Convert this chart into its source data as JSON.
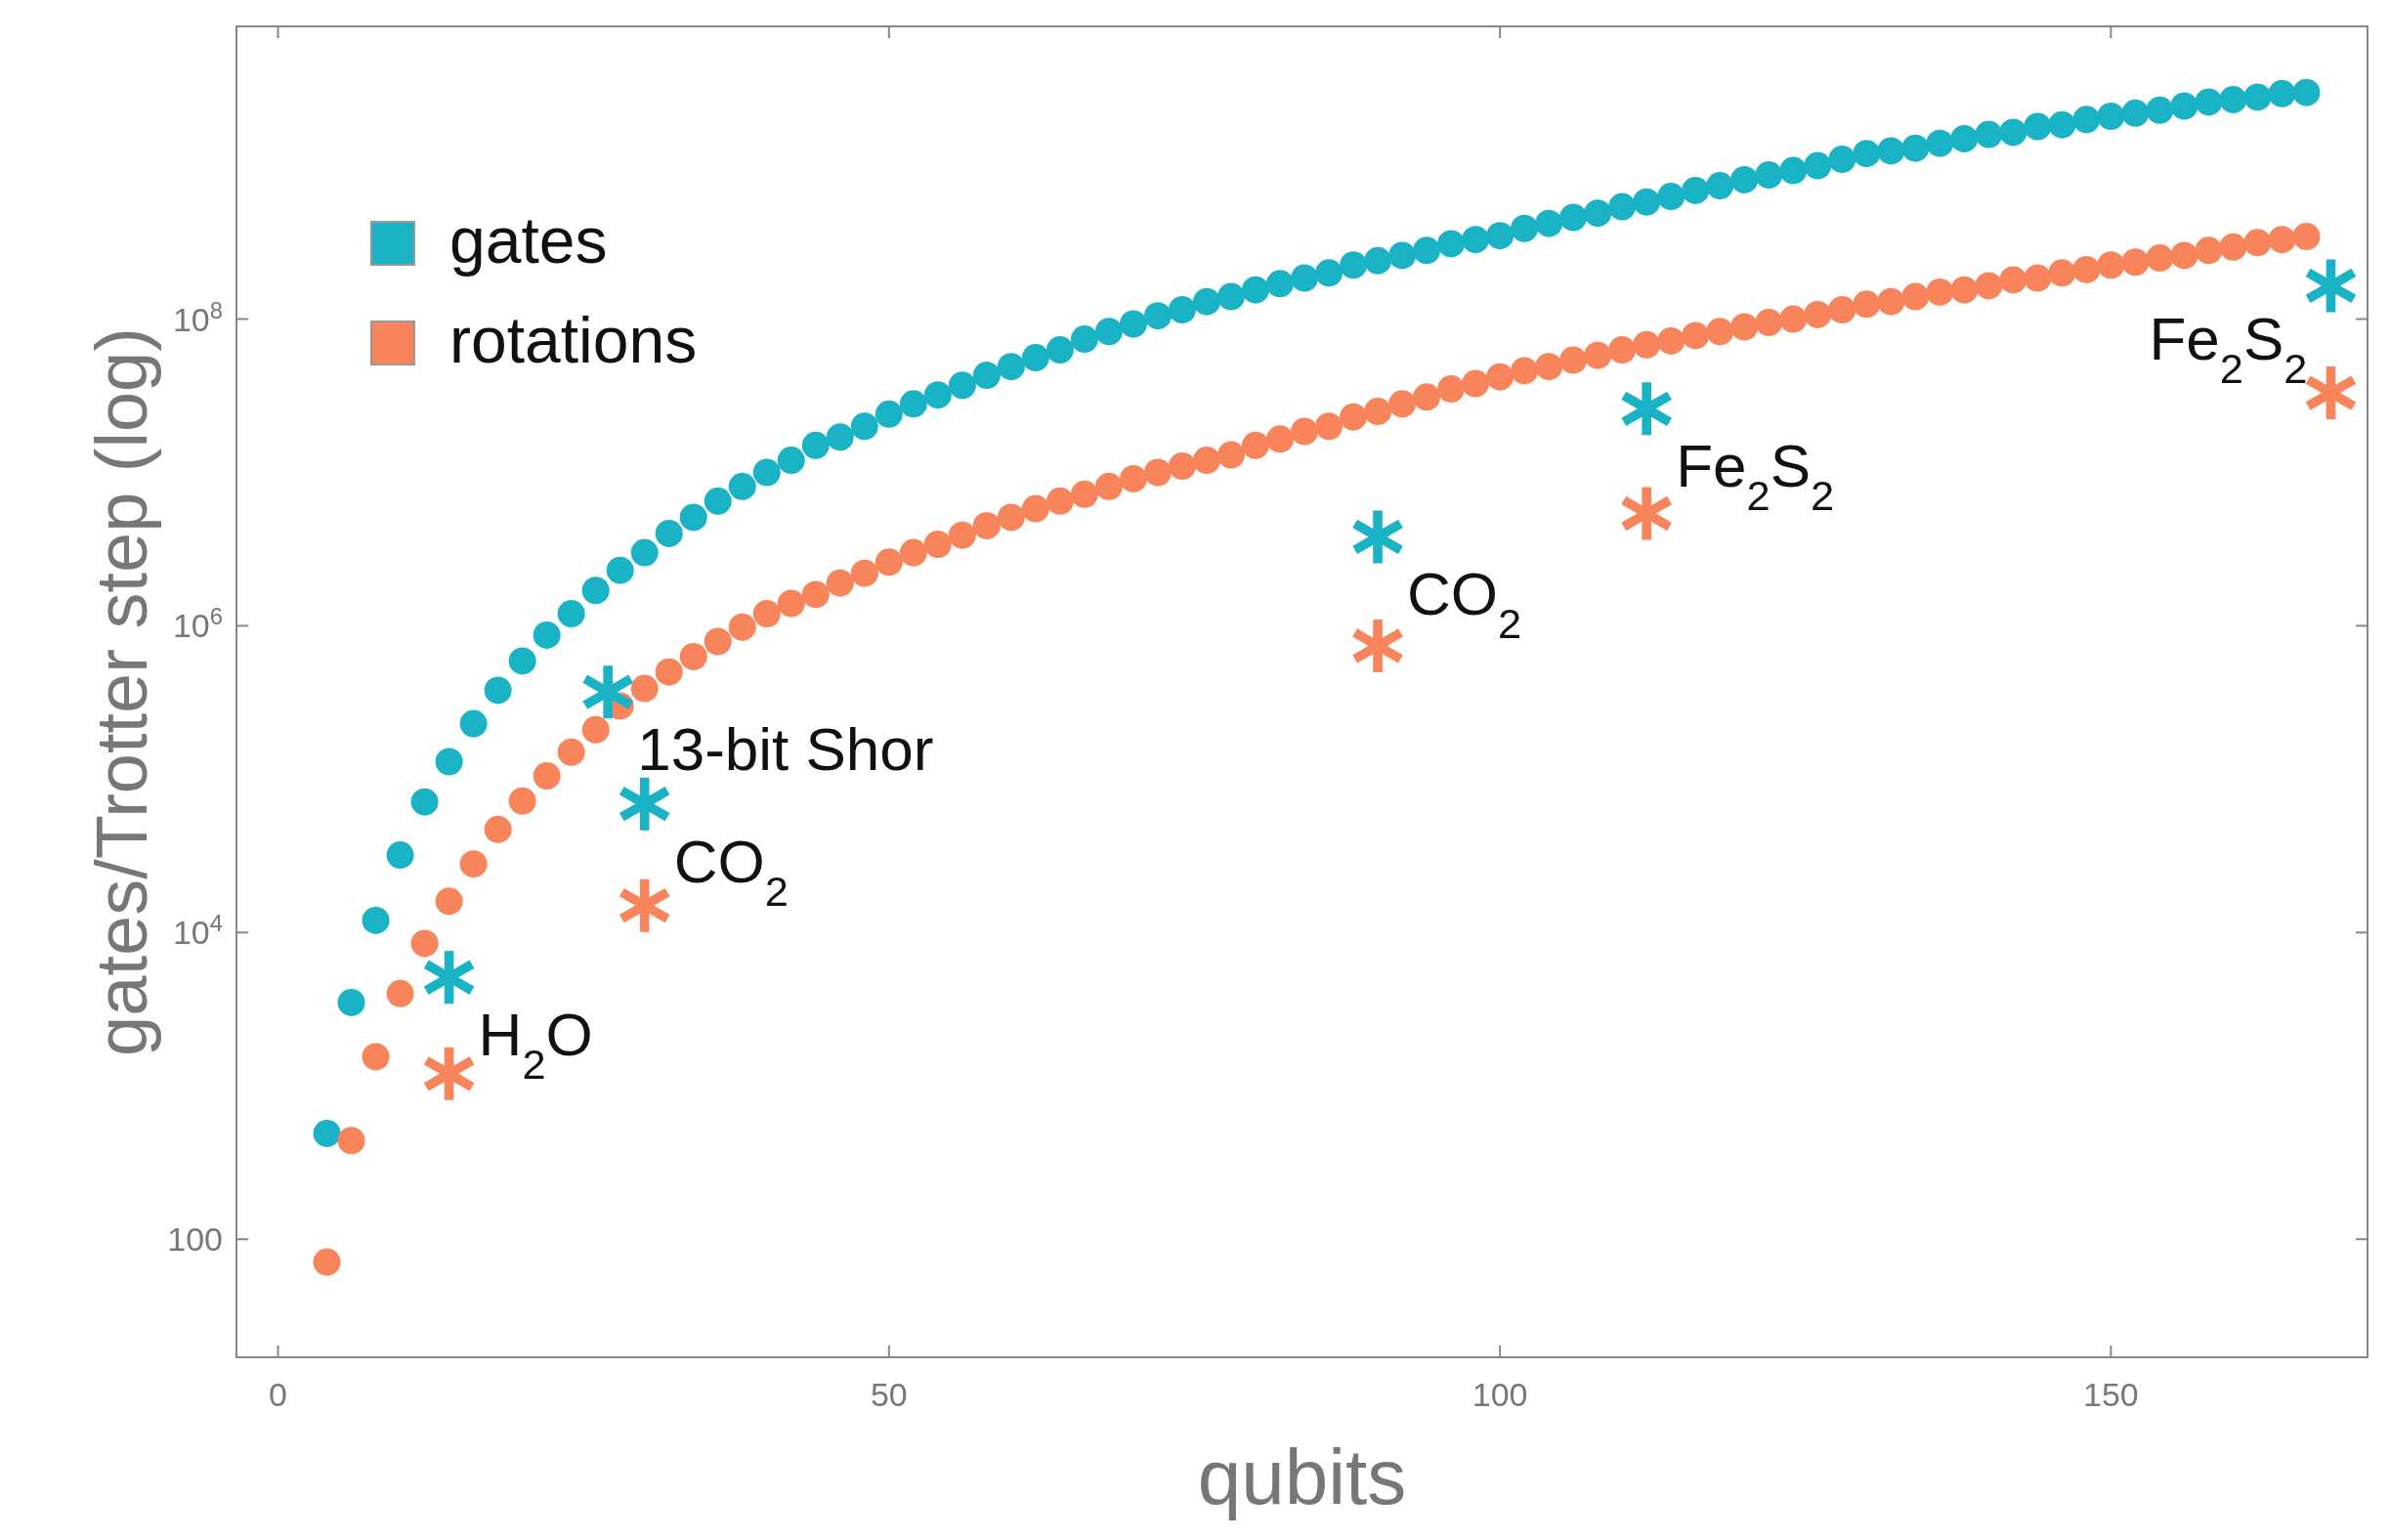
{
  "chart_data": {
    "type": "scatter",
    "xlabel": "qubits",
    "ylabel": "gates/Trotter step (log)",
    "log": "y",
    "grid": false,
    "legend": "top left",
    "marker": "circle",
    "xlim": [
      -3.4,
      171
    ],
    "xticks": [
      0,
      50,
      100,
      150
    ],
    "ylim": [
      17,
      8100000000.0
    ],
    "yticks": [
      100,
      {
        "value": 10000,
        "label": "10$^{4}$"
      },
      {
        "value": 1000000,
        "label": "10$^{6}$"
      },
      {
        "value": 100000000,
        "label": "10$^{8}$"
      }
    ],
    "x": [
      4,
      6,
      8,
      10,
      12,
      14,
      16,
      18,
      20,
      22,
      24,
      26,
      28,
      30,
      32,
      34,
      36,
      38,
      40,
      42,
      44,
      46,
      48,
      50,
      52,
      54,
      56,
      58,
      60,
      62,
      64,
      66,
      68,
      70,
      72,
      74,
      76,
      78,
      80,
      82,
      84,
      86,
      88,
      90,
      92,
      94,
      96,
      98,
      100,
      102,
      104,
      106,
      108,
      110,
      112,
      114,
      116,
      118,
      120,
      122,
      124,
      126,
      128,
      130,
      132,
      134,
      136,
      138,
      140,
      142,
      144,
      146,
      148,
      150,
      152,
      154,
      156,
      158,
      160,
      162,
      164,
      166
    ],
    "series": [
      {
        "name": "gates",
        "color": "#1ab3c6",
        "values": [
          490,
          3500,
          12000,
          32000,
          71000,
          130000,
          230000,
          380000,
          590000,
          870000,
          1200000,
          1700000,
          2300000,
          3000000,
          4000000,
          5100000,
          6500000,
          8100000,
          10000000,
          12000000,
          15000000,
          17000000,
          20000000,
          24000000,
          28000000,
          32000000,
          37000000,
          43000000,
          49000000,
          56000000,
          63000000,
          74000000,
          83000000,
          93000000,
          105000000,
          115000000,
          130000000,
          140000000,
          155000000,
          170000000,
          185000000,
          200000000,
          225000000,
          240000000,
          260000000,
          280000000,
          310000000,
          330000000,
          350000000,
          390000000,
          420000000,
          460000000,
          490000000,
          540000000,
          580000000,
          630000000,
          690000000,
          740000000,
          810000000,
          870000000,
          930000000,
          1000000000,
          1100000000,
          1200000000,
          1250000000,
          1300000000,
          1400000000,
          1500000000,
          1600000000,
          1650000000,
          1800000000,
          1850000000,
          2000000000,
          2100000000,
          2200000000,
          2300000000,
          2450000000,
          2600000000,
          2700000000,
          2800000000,
          2950000000,
          3000000000
        ]
      },
      {
        "name": "rotations",
        "color": "#f7845a",
        "values": [
          71,
          440,
          1550,
          4000,
          8500,
          16000,
          28000,
          47000,
          72000,
          105000,
          150000,
          210000,
          300000,
          390000,
          500000,
          630000,
          790000,
          980000,
          1200000,
          1400000,
          1600000,
          1900000,
          2200000,
          2600000,
          3000000,
          3400000,
          3900000,
          4500000,
          5100000,
          5800000,
          6500000,
          7200000,
          8100000,
          9100000,
          10000000,
          11000000,
          12000000,
          13000000,
          15000000,
          16500000,
          18500000,
          20000000,
          23000000,
          25000000,
          28000000,
          31000000,
          35000000,
          38000000,
          42000000,
          46000000,
          49000000,
          54000000,
          58000000,
          63000000,
          68000000,
          72000000,
          78000000,
          83000000,
          89000000,
          95000000,
          100000000,
          107000000,
          115000000,
          125000000,
          130000000,
          140000000,
          150000000,
          155000000,
          165000000,
          180000000,
          185000000,
          200000000,
          210000000,
          225000000,
          235000000,
          250000000,
          260000000,
          280000000,
          295000000,
          315000000,
          330000000,
          345000000
        ]
      },
      {
        "type": "scatter",
        "marker": "star",
        "color": "#1ab3c6",
        "x": [
          14,
          27,
          30,
          90,
          112,
          168
        ],
        "values": [
          5100,
          370000,
          69000,
          3800000,
          26000000,
          165000000
        ]
      },
      {
        "type": "scatter",
        "marker": "star",
        "color": "#f7845a",
        "x": [
          14,
          30,
          90,
          112,
          168
        ],
        "values": [
          1200,
          15000,
          740000,
          5400000,
          33000000
        ]
      }
    ],
    "annotations": [
      {
        "text": "H$_{2}$O",
        "x": 14,
        "y": 5100
      },
      {
        "text": "13-bit Shor",
        "x": 27,
        "y": 370000
      },
      {
        "text": "CO$_{2}$",
        "x": 30,
        "y": 69000
      },
      {
        "text": "CO$_{2}$",
        "x": 90,
        "y": 3800000
      },
      {
        "text": "Fe$_{2}$S$_{2}$",
        "x": 112,
        "y": 26000000
      },
      {
        "text": "Fe$_{2}$S$_{2}$",
        "x": 168,
        "y": 165000000
      }
    ]
  }
}
